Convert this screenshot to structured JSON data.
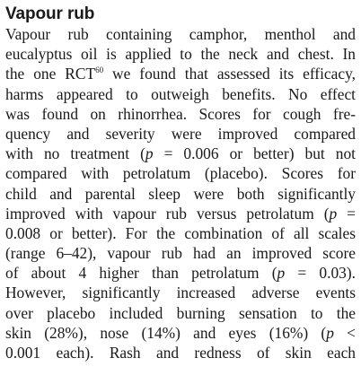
{
  "section": {
    "heading": "Vapour rub",
    "lines": [
      "Vapour rub containing camphor, menthol and",
      "eucalyptus oil is applied to the neck and chest. In",
      "the one RCT",
      "we found that assessed its efficacy,",
      "harms appeared to outweigh benefits. No effect",
      "was found on rhinorrhea. Scores for cough fre-",
      "quency and severity were improved compared",
      "with no treatment (",
      "p",
      " = 0.006 or better) but not",
      "compared with petrolatum (placebo). Scores for",
      "child and parental sleep were both significantly",
      "improved with vapour rub versus petrolatum (",
      "p",
      " =",
      "0.008 or better). For the combination of all scales",
      "(range 6–42), vapour rub had an improved score",
      "of about 4 higher than petrolatum (",
      "p",
      " = 0.03).",
      "However, significantly increased adverse events",
      "over placebo included burning sensation to the",
      "skin (28%), nose (14%) and eyes (16%) (",
      "p",
      " <",
      "0.001 each). Rash and redness of skin each"
    ],
    "citation": "60"
  }
}
